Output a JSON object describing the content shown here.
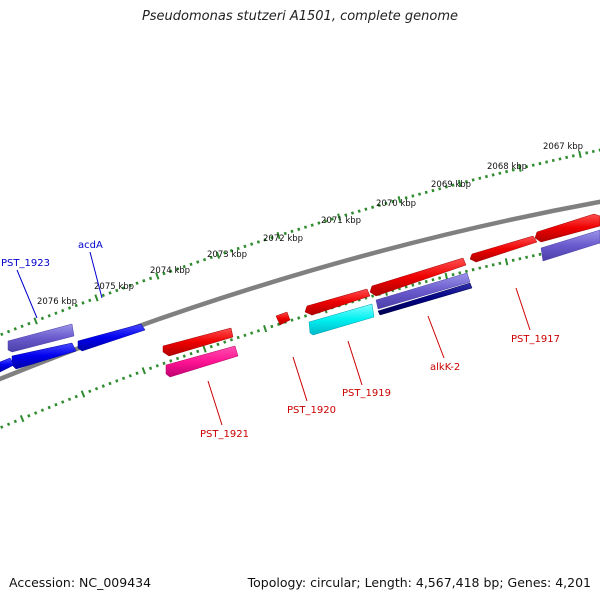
{
  "title": "Pseudomonas stutzeri A1501, complete genome",
  "footer": {
    "accession": "Accession: NC_009434",
    "topology": "Topology: circular; Length: 4,567,418 bp; Genes: 4,201"
  },
  "colors": {
    "backbone": "#808080",
    "tick": "#2e8b2e",
    "label_red": "#cc0000",
    "label_blue": "#0000cc"
  },
  "kbp_labels": [
    "2067 kbp",
    "2068 kbp",
    "2069 kbp",
    "2070 kbp",
    "2071 kbp",
    "2072 kbp",
    "2073 kbp",
    "2074 kbp",
    "2075 kbp",
    "2076 kbp"
  ],
  "gene_labels": [
    {
      "name": "PST_1923",
      "color": "blue"
    },
    {
      "name": "acdA",
      "color": "blue"
    },
    {
      "name": "PST_1921",
      "color": "red"
    },
    {
      "name": "PST_1920",
      "color": "red"
    },
    {
      "name": "PST_1919",
      "color": "red"
    },
    {
      "name": "alkK-2",
      "color": "red"
    },
    {
      "name": "PST_1917",
      "color": "red"
    }
  ]
}
